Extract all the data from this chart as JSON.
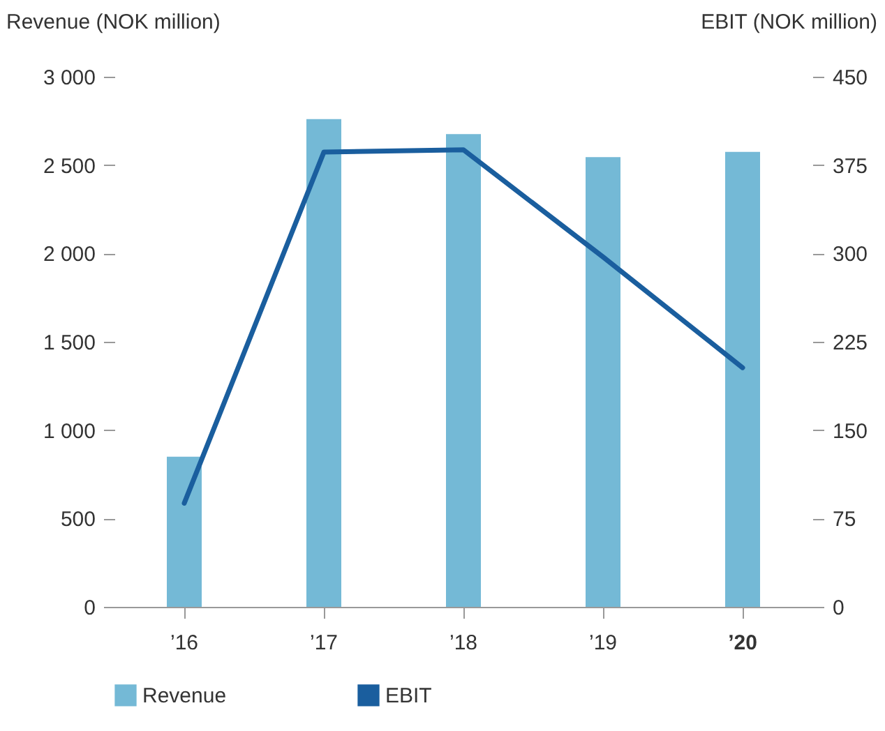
{
  "chart_data": {
    "type": "bar",
    "categories": [
      "’16",
      "’17",
      "’18",
      "’19",
      "’20"
    ],
    "series": [
      {
        "name": "Revenue",
        "color": "#74b9d6",
        "values": [
          850,
          2760,
          2675,
          2545,
          2575
        ]
      },
      {
        "name": "EBIT",
        "type": "line",
        "axis": "y2",
        "color": "#1a5e9e",
        "values": [
          88,
          386,
          388,
          297,
          203
        ]
      }
    ],
    "ylabel": "Revenue (NOK million)",
    "y2label": "EBIT (NOK million)",
    "ylim": [
      0,
      3000
    ],
    "yticks": [
      0,
      500,
      {
        "value": 1000,
        "label": "1 000"
      },
      {
        "value": 1500,
        "label": "1 500"
      },
      {
        "value": 2000,
        "label": "2 000"
      },
      {
        "value": 2500,
        "label": "2 500"
      },
      {
        "value": 3000,
        "label": "3 000"
      }
    ],
    "y2lim": [
      0,
      450
    ],
    "y2ticks": [
      0,
      75,
      150,
      225,
      300,
      375,
      450
    ],
    "legend": "bottom",
    "grid": false
  }
}
